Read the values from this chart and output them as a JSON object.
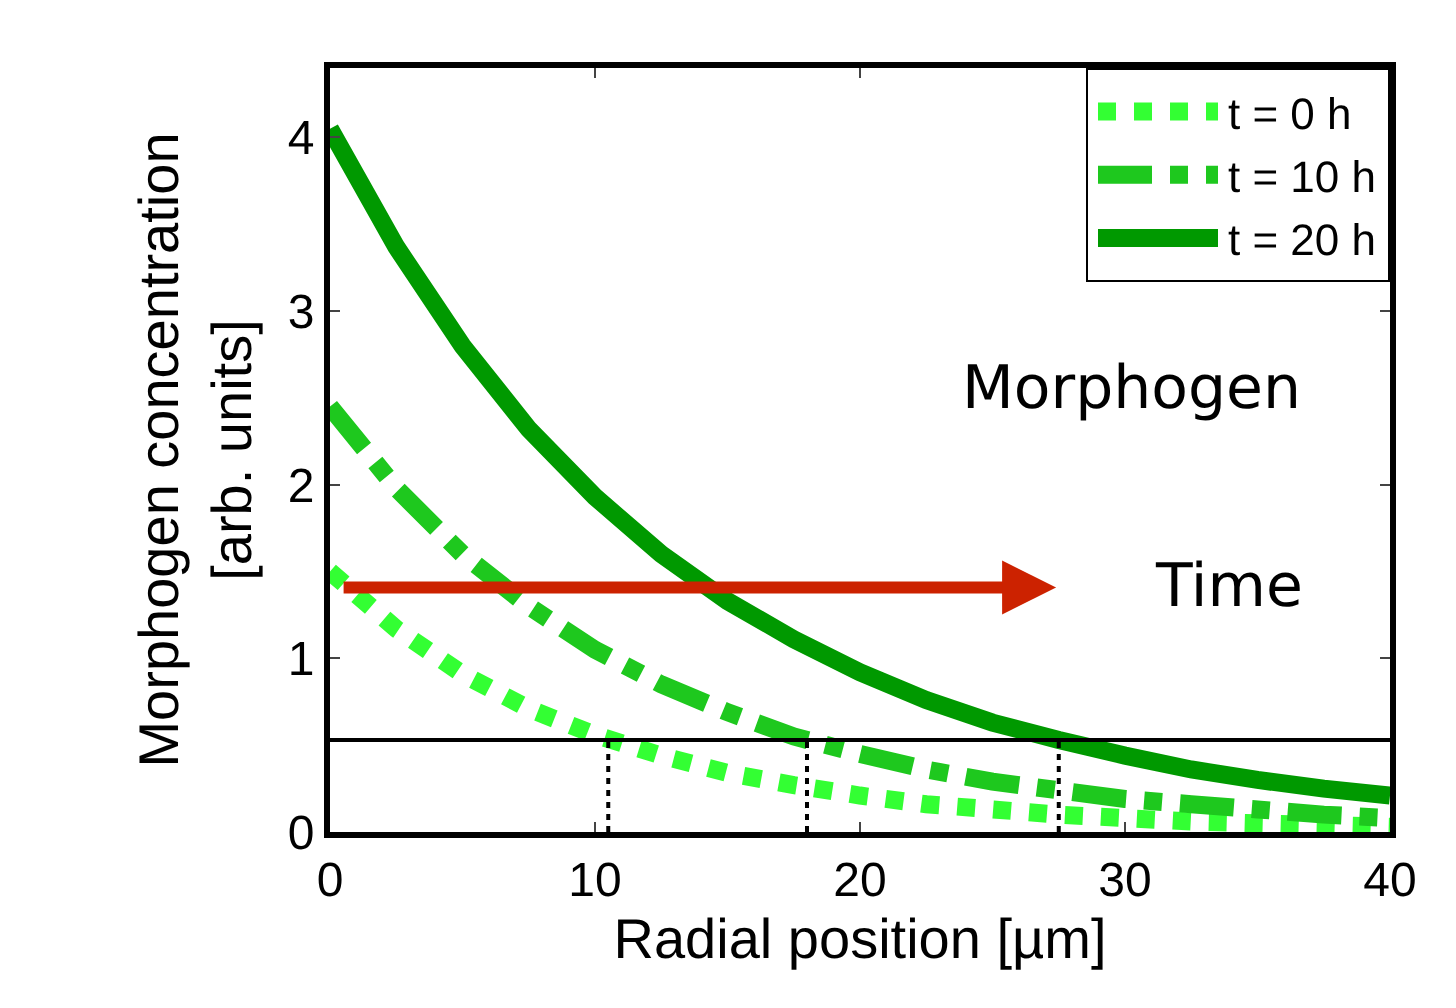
{
  "chart_data": {
    "type": "line",
    "xlabel": "Radial position [µm]",
    "ylabel": "Morphogen concentration\n[arb. units]",
    "x": [
      0,
      2.5,
      5,
      7.5,
      10,
      12.5,
      15,
      17.5,
      20,
      22.5,
      25,
      27.5,
      30,
      32.5,
      35,
      37.5,
      40
    ],
    "series": [
      {
        "name": "t = 0 h",
        "color": "#33ff33",
        "line_style": "dotted",
        "values": [
          1.5,
          1.17,
          0.91,
          0.71,
          0.56,
          0.44,
          0.34,
          0.27,
          0.21,
          0.16,
          0.13,
          0.1,
          0.08,
          0.06,
          0.05,
          0.04,
          0.03
        ]
      },
      {
        "name": "t = 10 h",
        "color": "#1ec81e",
        "line_style": "dashdot",
        "values": [
          2.45,
          1.98,
          1.6,
          1.3,
          1.05,
          0.85,
          0.69,
          0.55,
          0.45,
          0.36,
          0.29,
          0.24,
          0.19,
          0.16,
          0.13,
          0.1,
          0.08
        ]
      },
      {
        "name": "t = 20 h",
        "color": "#009900",
        "line_style": "solid",
        "values": [
          4.05,
          3.37,
          2.8,
          2.32,
          1.93,
          1.6,
          1.33,
          1.11,
          0.92,
          0.76,
          0.63,
          0.53,
          0.44,
          0.36,
          0.3,
          0.25,
          0.21
        ]
      },
      {
        "color": "#000000",
        "line_style": "dotted",
        "x": [
          10.5,
          10.5
        ],
        "values": [
          0,
          0.53
        ]
      },
      {
        "color": "#000000",
        "line_style": "dotted",
        "x": [
          18,
          18
        ],
        "values": [
          0,
          0.53
        ]
      },
      {
        "color": "#000000",
        "line_style": "dotted",
        "x": [
          27.5,
          27.5
        ],
        "values": [
          0,
          0.53
        ]
      }
    ],
    "ref_lines": [
      {
        "axis": "y",
        "value": 0.53,
        "color": "#000000",
        "line_style": "solid"
      }
    ],
    "annotations": [
      "Morphogen",
      "Time"
    ],
    "xlim": [
      0,
      40
    ],
    "xticks": [
      0,
      10,
      20,
      30,
      40
    ],
    "ylim": [
      0,
      4.4
    ],
    "yticks": [
      0,
      1,
      2,
      3,
      4
    ],
    "legend": "top right",
    "marker": "none"
  }
}
